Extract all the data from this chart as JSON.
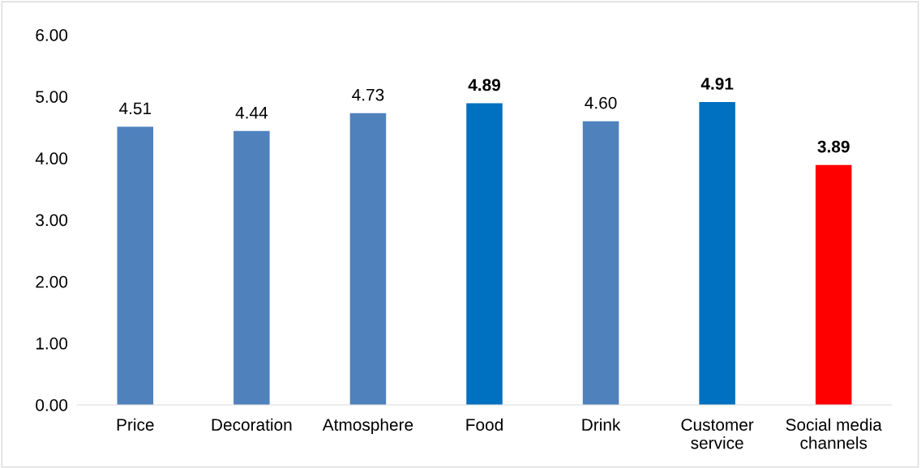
{
  "chart_data": {
    "type": "bar",
    "categories": [
      "Price",
      "Decoration",
      "Atmosphere",
      "Food",
      "Drink",
      "Customer\nservice",
      "Social media\nchannels"
    ],
    "values": [
      4.51,
      4.44,
      4.73,
      4.89,
      4.6,
      4.91,
      3.89
    ],
    "colors": [
      "#4f81bd",
      "#4f81bd",
      "#4f81bd",
      "#0070c0",
      "#4f81bd",
      "#0070c0",
      "#ff0000"
    ],
    "value_labels": [
      "4.51",
      "4.44",
      "4.73",
      "4.89",
      "4.60",
      "4.91",
      "3.89"
    ],
    "ylim": [
      0,
      6
    ],
    "yticks": [
      {
        "value": 0,
        "label": "0.00"
      },
      {
        "value": 1,
        "label": "1.00"
      },
      {
        "value": 2,
        "label": "2.00"
      },
      {
        "value": 3,
        "label": "3.00"
      },
      {
        "value": 4,
        "label": "4.00"
      },
      {
        "value": 5,
        "label": "5.00"
      },
      {
        "value": 6,
        "label": "6.00"
      }
    ],
    "grid": false,
    "legend": false
  }
}
